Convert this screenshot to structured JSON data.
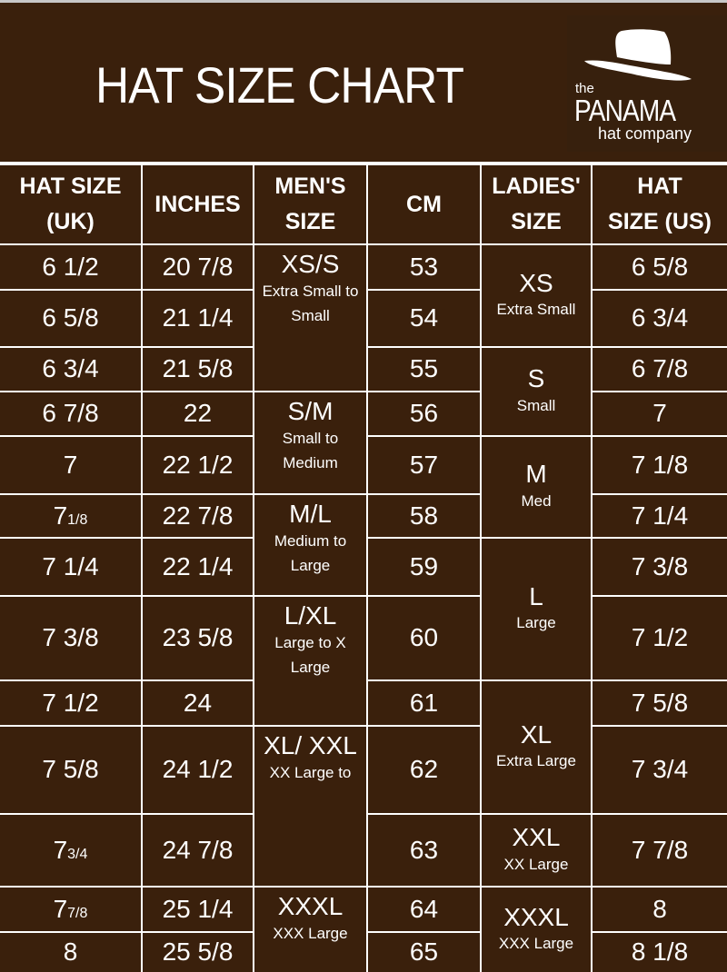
{
  "title": "HAT SIZE CHART",
  "logo": {
    "the": "the",
    "panama": "PANAMA",
    "company": "hat company"
  },
  "colors": {
    "background": "#3a200c",
    "text": "#ffffff",
    "grid": "#ffffff"
  },
  "headers": [
    "HAT SIZE (UK)",
    "INCHES",
    "MEN'S SIZE",
    "CM",
    "LADIES' SIZE",
    "HAT SIZE (US)"
  ],
  "header_lines": [
    [
      "HAT SIZE",
      "(UK)"
    ],
    [
      "INCHES"
    ],
    [
      "MEN'S",
      "SIZE"
    ],
    [
      "CM"
    ],
    [
      "LADIES'",
      "SIZE"
    ],
    [
      "HAT",
      "SIZE (US)"
    ]
  ],
  "rows": [
    {
      "uk": "6 1/2",
      "inches": "20 7/8",
      "cm": "53",
      "us": "6 5/8"
    },
    {
      "uk": "6 5/8",
      "inches": "21 1/4",
      "cm": "54",
      "us": "6 3/4"
    },
    {
      "uk": "6 3/4",
      "inches": "21 5/8",
      "cm": "55",
      "us": "6 7/8"
    },
    {
      "uk": "6 7/8",
      "inches": "22",
      "cm": "56",
      "us": "7"
    },
    {
      "uk": "7",
      "inches": "22 1/2",
      "cm": "57",
      "us": "7 1/8"
    },
    {
      "uk": "7 1/8",
      "uk_small_fraction": true,
      "inches": "22 7/8",
      "cm": "58",
      "us": "7 1/4"
    },
    {
      "uk": "7 1/4",
      "inches": "22 1/4",
      "cm": "59",
      "us": "7 3/8"
    },
    {
      "uk": "7 3/8",
      "inches": "23 5/8",
      "cm": "60",
      "us": "7 1/2"
    },
    {
      "uk": "7 1/2",
      "inches": "24",
      "cm": "61",
      "us": "7 5/8"
    },
    {
      "uk": "7 5/8",
      "inches": "24 1/2",
      "cm": "62",
      "us": "7 3/4"
    },
    {
      "uk": "7 3/4",
      "uk_small_fraction": true,
      "inches": "24 7/8",
      "cm": "63",
      "us": "7 7/8"
    },
    {
      "uk": "7 7/8",
      "uk_small_fraction": true,
      "inches": "25 1/4",
      "cm": "64",
      "us": "8"
    },
    {
      "uk": "8",
      "inches": "25 5/8",
      "cm": "65",
      "us": "8 1/8"
    }
  ],
  "mens_sizes": [
    {
      "size": "XS/S",
      "desc": "Extra Small to Small",
      "rows": 3
    },
    {
      "size": "S/M",
      "desc": "Small to Medium",
      "rows": 2
    },
    {
      "size": "M/L",
      "desc": "Medium to Large",
      "rows": 2
    },
    {
      "size": "L/XL",
      "desc": "Large to X Large",
      "rows": 2
    },
    {
      "size": "XL/ XXL",
      "desc": "XX Large to",
      "rows": 2
    },
    {
      "size": "XXXL",
      "desc": "XXX Large",
      "rows": 2
    }
  ],
  "ladies_sizes": [
    {
      "size": "XS",
      "desc": "Extra Small",
      "rows": 2
    },
    {
      "size": "S",
      "desc": "Small",
      "rows": 2
    },
    {
      "size": "M",
      "desc": "Med",
      "rows": 2
    },
    {
      "size": "L",
      "desc": "Large",
      "rows": 2
    },
    {
      "size": "XL",
      "desc": "Extra Large",
      "rows": 2
    },
    {
      "size": "XXL",
      "desc": "XX Large",
      "rows": 1
    },
    {
      "size": "XXXL",
      "desc": "XXX Large",
      "rows": 2
    }
  ]
}
